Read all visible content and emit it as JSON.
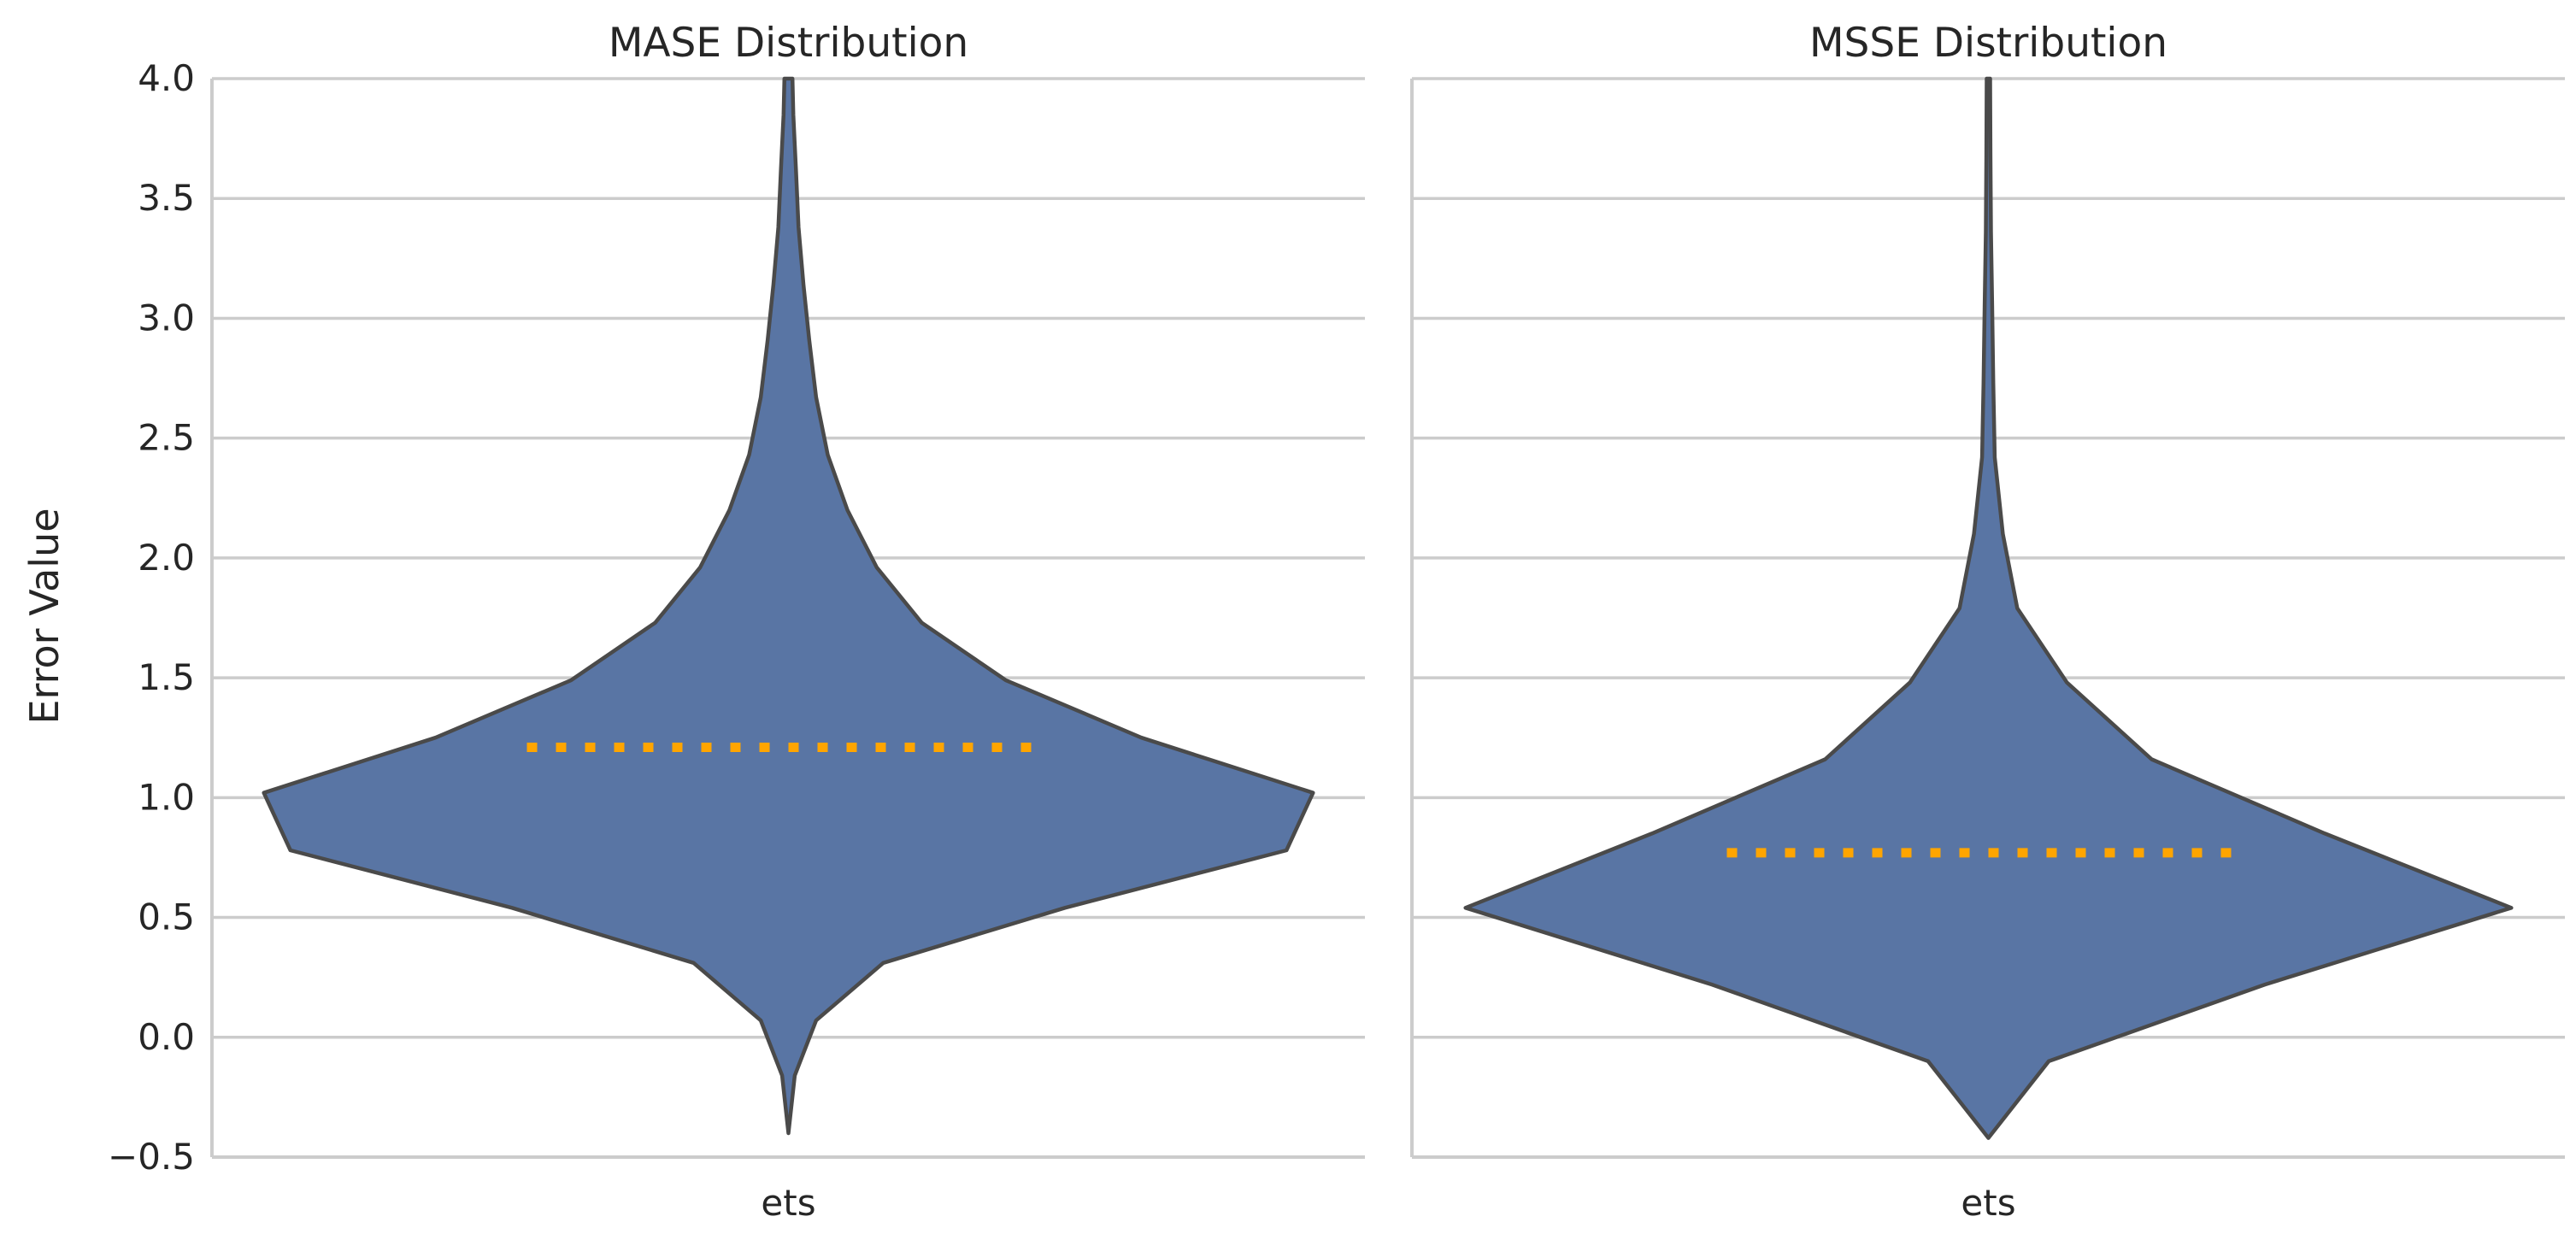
{
  "chart_data": [
    {
      "type": "violin",
      "title": "MASE Distribution",
      "ylabel": "Error Value",
      "category": "ets",
      "ylim": [
        -0.5,
        4.0
      ],
      "yticks": [
        -0.5,
        0.0,
        0.5,
        1.0,
        1.5,
        2.0,
        2.5,
        3.0,
        3.5,
        4.0
      ],
      "ytick_labels": [
        "−0.5",
        "0.0",
        "0.5",
        "1.0",
        "1.5",
        "2.0",
        "2.5",
        "3.0",
        "3.5",
        "4.0"
      ],
      "grid": "y",
      "fill_color": "#5975a4",
      "edge_color": "#4a4a4a",
      "mean_line": {
        "value": 1.21,
        "style": "dotted",
        "color": "#ffa500"
      },
      "profile": [
        {
          "y": -0.4,
          "width": 0.0
        },
        {
          "y": -0.16,
          "width": 0.022
        },
        {
          "y": 0.07,
          "width": 0.096
        },
        {
          "y": 0.31,
          "width": 0.328
        },
        {
          "y": 0.54,
          "width": 0.957
        },
        {
          "y": 0.78,
          "width": 1.724
        },
        {
          "y": 1.02,
          "width": 1.816
        },
        {
          "y": 1.25,
          "width": 1.222
        },
        {
          "y": 1.49,
          "width": 0.752
        },
        {
          "y": 1.73,
          "width": 0.461
        },
        {
          "y": 1.96,
          "width": 0.306
        },
        {
          "y": 2.2,
          "width": 0.204
        },
        {
          "y": 2.43,
          "width": 0.136
        },
        {
          "y": 2.67,
          "width": 0.096
        },
        {
          "y": 2.91,
          "width": 0.072
        },
        {
          "y": 3.14,
          "width": 0.052
        },
        {
          "y": 3.38,
          "width": 0.035
        },
        {
          "y": 3.62,
          "width": 0.026
        },
        {
          "y": 3.85,
          "width": 0.017
        },
        {
          "y": 4.0,
          "width": 0.014
        }
      ]
    },
    {
      "type": "violin",
      "title": "MSSE Distribution",
      "category": "ets",
      "ylim": [
        -0.5,
        4.0
      ],
      "grid": "y",
      "fill_color": "#5975a4",
      "edge_color": "#4a4a4a",
      "mean_line": {
        "value": 0.77,
        "style": "dotted",
        "color": "#ffa500"
      },
      "profile": [
        {
          "y": -0.42,
          "width": 0.0
        },
        {
          "y": -0.1,
          "width": 0.209
        },
        {
          "y": 0.22,
          "width": 0.957
        },
        {
          "y": 0.54,
          "width": 1.81
        },
        {
          "y": 0.85,
          "width": 1.165
        },
        {
          "y": 1.16,
          "width": 0.565
        },
        {
          "y": 1.48,
          "width": 0.272
        },
        {
          "y": 1.79,
          "width": 0.1
        },
        {
          "y": 2.1,
          "width": 0.05
        },
        {
          "y": 2.42,
          "width": 0.022
        },
        {
          "y": 2.73,
          "width": 0.017
        },
        {
          "y": 3.05,
          "width": 0.013
        },
        {
          "y": 3.36,
          "width": 0.009
        },
        {
          "y": 3.68,
          "width": 0.007
        },
        {
          "y": 4.0,
          "width": 0.006
        }
      ]
    }
  ]
}
